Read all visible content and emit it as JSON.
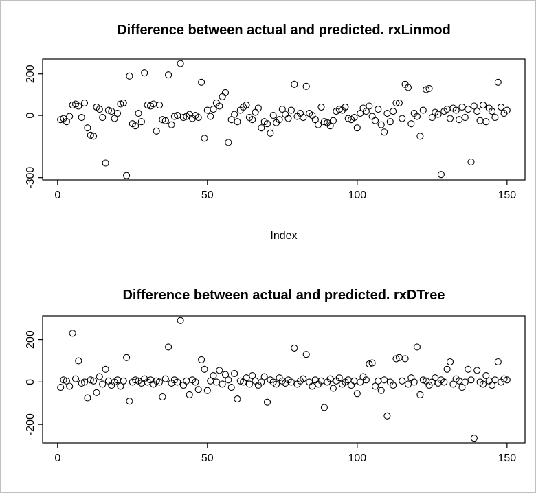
{
  "window": {
    "background": "#ffffff",
    "border_color": "#c0c0c0",
    "point_color": "#000000",
    "axis_color": "#000000"
  },
  "chart_data": [
    {
      "type": "scatter",
      "title": "Difference between actual and predicted. rxLinmod",
      "xlabel": "Index",
      "ylabel": "",
      "marker": "open-circle",
      "grid": false,
      "legend": "none",
      "xlim": [
        -5,
        156
      ],
      "ylim": [
        -311,
        272
      ],
      "x_ticks": [
        0,
        50,
        100,
        150
      ],
      "y_ticks": [
        200,
        0,
        -300
      ],
      "y_tick_labels": [
        "200",
        "0",
        "-300"
      ],
      "x_is_index": true,
      "y": [
        -20,
        -15,
        -30,
        -5,
        50,
        55,
        45,
        -10,
        60,
        -60,
        -95,
        -100,
        40,
        30,
        -10,
        -230,
        25,
        20,
        -15,
        10,
        55,
        60,
        -290,
        190,
        -40,
        -50,
        10,
        -30,
        205,
        50,
        45,
        55,
        -75,
        50,
        -20,
        -25,
        195,
        -45,
        -5,
        0,
        250,
        -10,
        -5,
        5,
        -15,
        0,
        -10,
        160,
        -110,
        25,
        -5,
        30,
        60,
        45,
        90,
        110,
        -130,
        -20,
        5,
        -30,
        25,
        40,
        50,
        -10,
        -20,
        15,
        35,
        -60,
        -30,
        -40,
        -85,
        0,
        -35,
        -20,
        30,
        5,
        -15,
        25,
        150,
        -5,
        10,
        -10,
        140,
        10,
        0,
        -20,
        -45,
        40,
        -30,
        -35,
        -50,
        -25,
        20,
        30,
        25,
        40,
        -15,
        -20,
        -10,
        -60,
        10,
        35,
        20,
        45,
        -5,
        -25,
        30,
        -45,
        -80,
        10,
        -30,
        20,
        60,
        60,
        -15,
        150,
        135,
        -40,
        10,
        -5,
        -100,
        25,
        125,
        130,
        -10,
        15,
        5,
        -285,
        20,
        30,
        -15,
        35,
        25,
        -20,
        40,
        -10,
        30,
        -225,
        45,
        20,
        -25,
        50,
        -30,
        35,
        20,
        -10,
        160,
        40,
        10,
        25
      ]
    },
    {
      "type": "scatter",
      "title": "Difference between actual and predicted. rxDTree",
      "xlabel": "",
      "ylabel": "",
      "marker": "open-circle",
      "grid": false,
      "legend": "none",
      "xlim": [
        -5,
        156
      ],
      "ylim": [
        -287,
        312
      ],
      "x_ticks": [
        0,
        50,
        100,
        150
      ],
      "y_ticks": [
        200,
        0,
        -200
      ],
      "y_tick_labels": [
        "200",
        "0",
        "-200"
      ],
      "x_is_index": true,
      "y": [
        -25,
        10,
        5,
        -20,
        230,
        15,
        100,
        -5,
        0,
        -75,
        10,
        5,
        -50,
        25,
        -10,
        60,
        5,
        -15,
        0,
        10,
        -20,
        5,
        115,
        -90,
        0,
        10,
        5,
        -5,
        15,
        0,
        10,
        -10,
        5,
        0,
        -70,
        15,
        165,
        -5,
        10,
        0,
        290,
        -15,
        5,
        -60,
        10,
        0,
        -35,
        105,
        60,
        -40,
        5,
        30,
        0,
        55,
        -10,
        35,
        10,
        -25,
        40,
        -80,
        5,
        0,
        20,
        -10,
        30,
        5,
        -15,
        0,
        25,
        -95,
        10,
        0,
        -10,
        20,
        5,
        -5,
        10,
        0,
        160,
        -10,
        5,
        15,
        130,
        0,
        -20,
        10,
        -10,
        5,
        -120,
        0,
        15,
        -30,
        5,
        20,
        -10,
        0,
        10,
        -15,
        5,
        -55,
        0,
        25,
        10,
        85,
        90,
        -20,
        5,
        -40,
        10,
        -160,
        0,
        -15,
        110,
        115,
        5,
        110,
        -10,
        20,
        0,
        165,
        -60,
        10,
        5,
        -15,
        0,
        20,
        -5,
        10,
        0,
        60,
        95,
        -10,
        15,
        5,
        -25,
        0,
        60,
        10,
        -265,
        55,
        0,
        -10,
        30,
        5,
        -15,
        10,
        95,
        0,
        15,
        10
      ]
    }
  ]
}
